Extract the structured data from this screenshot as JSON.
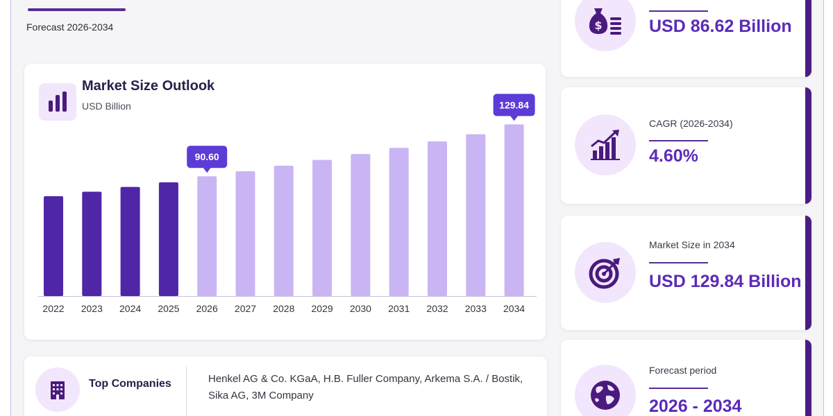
{
  "header": {
    "forecast_text": "Forecast 2026-2034"
  },
  "chart_card": {
    "title": "Market Size Outlook",
    "unit": "USD Billion"
  },
  "chart_data": {
    "type": "bar",
    "title": "Market Size Outlook",
    "ylabel": "USD Billion",
    "categories": [
      "2022",
      "2023",
      "2024",
      "2025",
      "2026",
      "2027",
      "2028",
      "2029",
      "2030",
      "2031",
      "2032",
      "2033",
      "2034"
    ],
    "values": [
      75.5,
      78.9,
      82.5,
      86.0,
      90.6,
      94.4,
      98.6,
      103.0,
      107.4,
      112.1,
      117.0,
      122.4,
      129.84
    ],
    "ylim": [
      0,
      140
    ],
    "grid": false,
    "annotations": [
      {
        "category": "2026",
        "label": "90.60"
      },
      {
        "category": "2034",
        "label": "129.84"
      }
    ],
    "colors": {
      "historical": "#4f26a6",
      "forecast": "#c9b5f3",
      "callout": "#5d3bd6"
    }
  },
  "stats": [
    {
      "label": "",
      "value": "USD 86.62 Billion",
      "icon": "money-bag-icon"
    },
    {
      "label": "CAGR (2026-2034)",
      "value": "4.60%",
      "icon": "growth-chart-icon"
    },
    {
      "label": "Market Size in 2034",
      "value": "USD 129.84 Billion",
      "icon": "target-icon"
    },
    {
      "label": "Forecast period",
      "value": "2026 - 2034",
      "icon": "globe-icon"
    }
  ],
  "companies": {
    "label": "Top Companies",
    "text": "Henkel AG & Co. KGaA, H.B. Fuller Company, Arkema S.A. / Bostik, Sika AG, 3M Company",
    "icon": "building-icon"
  },
  "colors": {
    "accent": "#5b2bb8",
    "dark_accent": "#4b1d83",
    "icon_bg": "#f1e6fb",
    "icon_fill": "#4a1a7e"
  }
}
